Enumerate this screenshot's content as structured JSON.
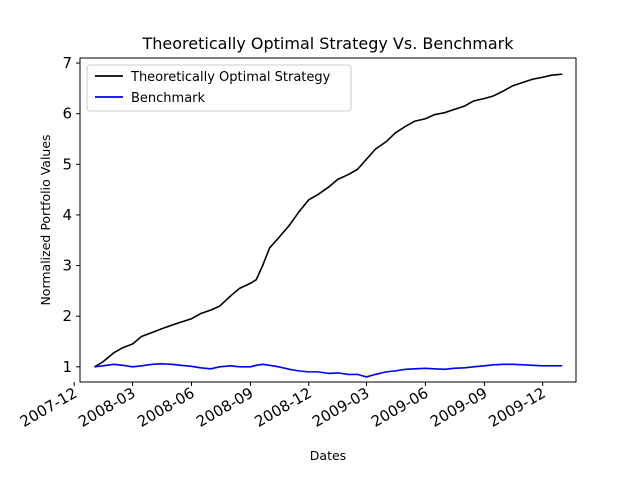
{
  "chart_data": {
    "type": "line",
    "title": "Theoretically Optimal Strategy Vs. Benchmark",
    "xlabel": "Dates",
    "ylabel": "Normalized Portfolio Values",
    "x_ticks": [
      "2007-12",
      "2008-03",
      "2008-06",
      "2008-09",
      "2008-12",
      "2009-03",
      "2009-06",
      "2009-09",
      "2009-12"
    ],
    "y_ticks": [
      "1",
      "2",
      "3",
      "4",
      "5",
      "6",
      "7"
    ],
    "ylim": [
      0.7,
      7.1
    ],
    "xlim": [
      "2007-12-10",
      "2010-01-22"
    ],
    "grid": false,
    "legend_position": "upper-left",
    "series": [
      {
        "name": "Theoretically Optimal Strategy",
        "color": "#000000",
        "x": [
          "2008-01-02",
          "2008-01-15",
          "2008-02-01",
          "2008-02-15",
          "2008-03-01",
          "2008-03-15",
          "2008-04-01",
          "2008-04-15",
          "2008-05-01",
          "2008-05-15",
          "2008-06-01",
          "2008-06-15",
          "2008-07-01",
          "2008-07-15",
          "2008-08-01",
          "2008-08-15",
          "2008-09-01",
          "2008-09-10",
          "2008-09-20",
          "2008-10-01",
          "2008-10-15",
          "2008-11-01",
          "2008-11-15",
          "2008-12-01",
          "2008-12-15",
          "2009-01-01",
          "2009-01-15",
          "2009-02-01",
          "2009-02-15",
          "2009-03-01",
          "2009-03-15",
          "2009-04-01",
          "2009-04-15",
          "2009-05-01",
          "2009-05-15",
          "2009-06-01",
          "2009-06-15",
          "2009-07-01",
          "2009-07-15",
          "2009-08-01",
          "2009-08-15",
          "2009-09-01",
          "2009-09-15",
          "2009-10-01",
          "2009-10-15",
          "2009-11-01",
          "2009-11-15",
          "2009-12-01",
          "2009-12-15",
          "2009-12-31"
        ],
        "y": [
          1.0,
          1.1,
          1.28,
          1.38,
          1.45,
          1.6,
          1.68,
          1.75,
          1.82,
          1.88,
          1.95,
          2.05,
          2.12,
          2.2,
          2.4,
          2.55,
          2.65,
          2.72,
          3.0,
          3.35,
          3.55,
          3.8,
          4.05,
          4.3,
          4.4,
          4.55,
          4.7,
          4.8,
          4.9,
          5.1,
          5.3,
          5.45,
          5.62,
          5.75,
          5.85,
          5.9,
          5.98,
          6.02,
          6.08,
          6.15,
          6.25,
          6.3,
          6.35,
          6.45,
          6.55,
          6.62,
          6.68,
          6.72,
          6.76,
          6.78
        ]
      },
      {
        "name": "Benchmark",
        "color": "#0000ff",
        "x": [
          "2008-01-02",
          "2008-01-15",
          "2008-02-01",
          "2008-02-15",
          "2008-03-01",
          "2008-03-15",
          "2008-04-01",
          "2008-04-15",
          "2008-05-01",
          "2008-05-15",
          "2008-06-01",
          "2008-06-15",
          "2008-07-01",
          "2008-07-15",
          "2008-08-01",
          "2008-08-15",
          "2008-09-01",
          "2008-09-10",
          "2008-09-20",
          "2008-10-01",
          "2008-10-15",
          "2008-11-01",
          "2008-11-15",
          "2008-12-01",
          "2008-12-15",
          "2009-01-01",
          "2009-01-15",
          "2009-02-01",
          "2009-02-15",
          "2009-03-01",
          "2009-03-15",
          "2009-04-01",
          "2009-04-15",
          "2009-05-01",
          "2009-05-15",
          "2009-06-01",
          "2009-06-15",
          "2009-07-01",
          "2009-07-15",
          "2009-08-01",
          "2009-08-15",
          "2009-09-01",
          "2009-09-15",
          "2009-10-01",
          "2009-10-15",
          "2009-11-01",
          "2009-11-15",
          "2009-12-01",
          "2009-12-15",
          "2009-12-31"
        ],
        "y": [
          1.0,
          1.02,
          1.05,
          1.03,
          1.0,
          1.02,
          1.05,
          1.06,
          1.05,
          1.03,
          1.01,
          0.98,
          0.96,
          1.0,
          1.02,
          1.0,
          1.0,
          1.03,
          1.05,
          1.03,
          1.0,
          0.95,
          0.92,
          0.9,
          0.9,
          0.87,
          0.88,
          0.85,
          0.85,
          0.8,
          0.85,
          0.9,
          0.92,
          0.95,
          0.96,
          0.97,
          0.96,
          0.95,
          0.97,
          0.98,
          1.0,
          1.02,
          1.04,
          1.05,
          1.05,
          1.04,
          1.03,
          1.02,
          1.02,
          1.02
        ]
      }
    ]
  }
}
